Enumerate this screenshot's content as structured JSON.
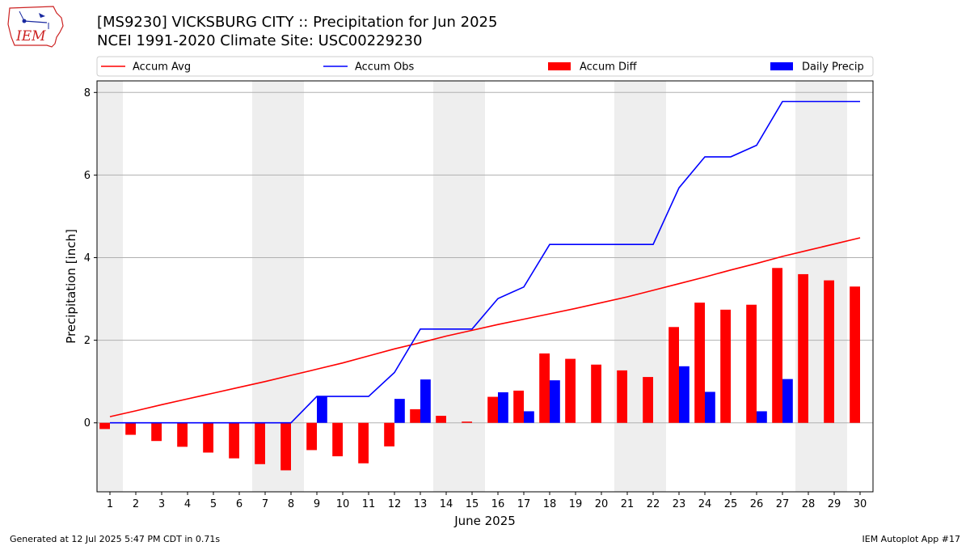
{
  "chart_data": {
    "type": "bar",
    "title": "[MS9230] VICKSBURG CITY :: Precipitation for Jun 2025",
    "subtitle": "NCEI 1991-2020 Climate Site: USC00229230",
    "xlabel": "June 2025",
    "ylabel": "Precipitation [inch]",
    "ylim": [
      -1.67,
      8.28
    ],
    "xlim": [
      0.5,
      30.5
    ],
    "yticks": [
      0,
      2,
      4,
      6,
      8
    ],
    "grid": "horizontal",
    "legend_position": "top",
    "weekend_shading_days": [
      1,
      7,
      8,
      14,
      15,
      21,
      22,
      28,
      29
    ],
    "categories": [
      "1",
      "2",
      "3",
      "4",
      "5",
      "6",
      "7",
      "8",
      "9",
      "10",
      "11",
      "12",
      "13",
      "14",
      "15",
      "16",
      "17",
      "18",
      "19",
      "20",
      "21",
      "22",
      "23",
      "24",
      "25",
      "26",
      "27",
      "28",
      "29",
      "30"
    ],
    "series": [
      {
        "name": "Accum Avg",
        "kind": "line",
        "color": "#ff0000",
        "values": [
          0.15,
          0.29,
          0.44,
          0.58,
          0.72,
          0.86,
          1.0,
          1.15,
          1.3,
          1.45,
          1.62,
          1.79,
          1.94,
          2.1,
          2.24,
          2.38,
          2.51,
          2.64,
          2.77,
          2.91,
          3.05,
          3.21,
          3.37,
          3.53,
          3.7,
          3.86,
          4.03,
          4.18,
          4.33,
          4.48
        ]
      },
      {
        "name": "Accum Obs",
        "kind": "line",
        "color": "#0000ff",
        "values": [
          0,
          0,
          0,
          0,
          0,
          0,
          0,
          0,
          0.64,
          0.64,
          0.64,
          1.22,
          2.27,
          2.27,
          2.27,
          3.01,
          3.29,
          4.32,
          4.32,
          4.32,
          4.32,
          4.32,
          5.69,
          6.44,
          6.44,
          6.72,
          7.78,
          7.78,
          7.78,
          7.78
        ]
      },
      {
        "name": "Accum Diff",
        "kind": "bar",
        "color": "#ff0000",
        "values": [
          -0.15,
          -0.29,
          -0.44,
          -0.58,
          -0.72,
          -0.86,
          -1.0,
          -1.15,
          -0.66,
          -0.81,
          -0.98,
          -0.57,
          0.33,
          0.17,
          0.03,
          0.63,
          0.78,
          1.68,
          1.55,
          1.41,
          1.27,
          1.11,
          2.32,
          2.91,
          2.74,
          2.86,
          3.75,
          3.6,
          3.45,
          3.3
        ]
      },
      {
        "name": "Daily Precip",
        "kind": "bar",
        "color": "#0000ff",
        "values": [
          0,
          0,
          0,
          0,
          0,
          0,
          0,
          0,
          0.64,
          0,
          0,
          0.58,
          1.05,
          0,
          0,
          0.74,
          0.28,
          1.03,
          0,
          0,
          0,
          0,
          1.37,
          0.75,
          0,
          0.28,
          1.06,
          0,
          0,
          0
        ]
      }
    ]
  },
  "footer": {
    "generated": "Generated at 12 Jul 2025 5:47 PM CDT in 0.71s",
    "app": "IEM Autoplot App #17"
  },
  "logo": {
    "text": "IEM",
    "icon": "iowa-state-logo-icon",
    "color": "#cc2222"
  }
}
